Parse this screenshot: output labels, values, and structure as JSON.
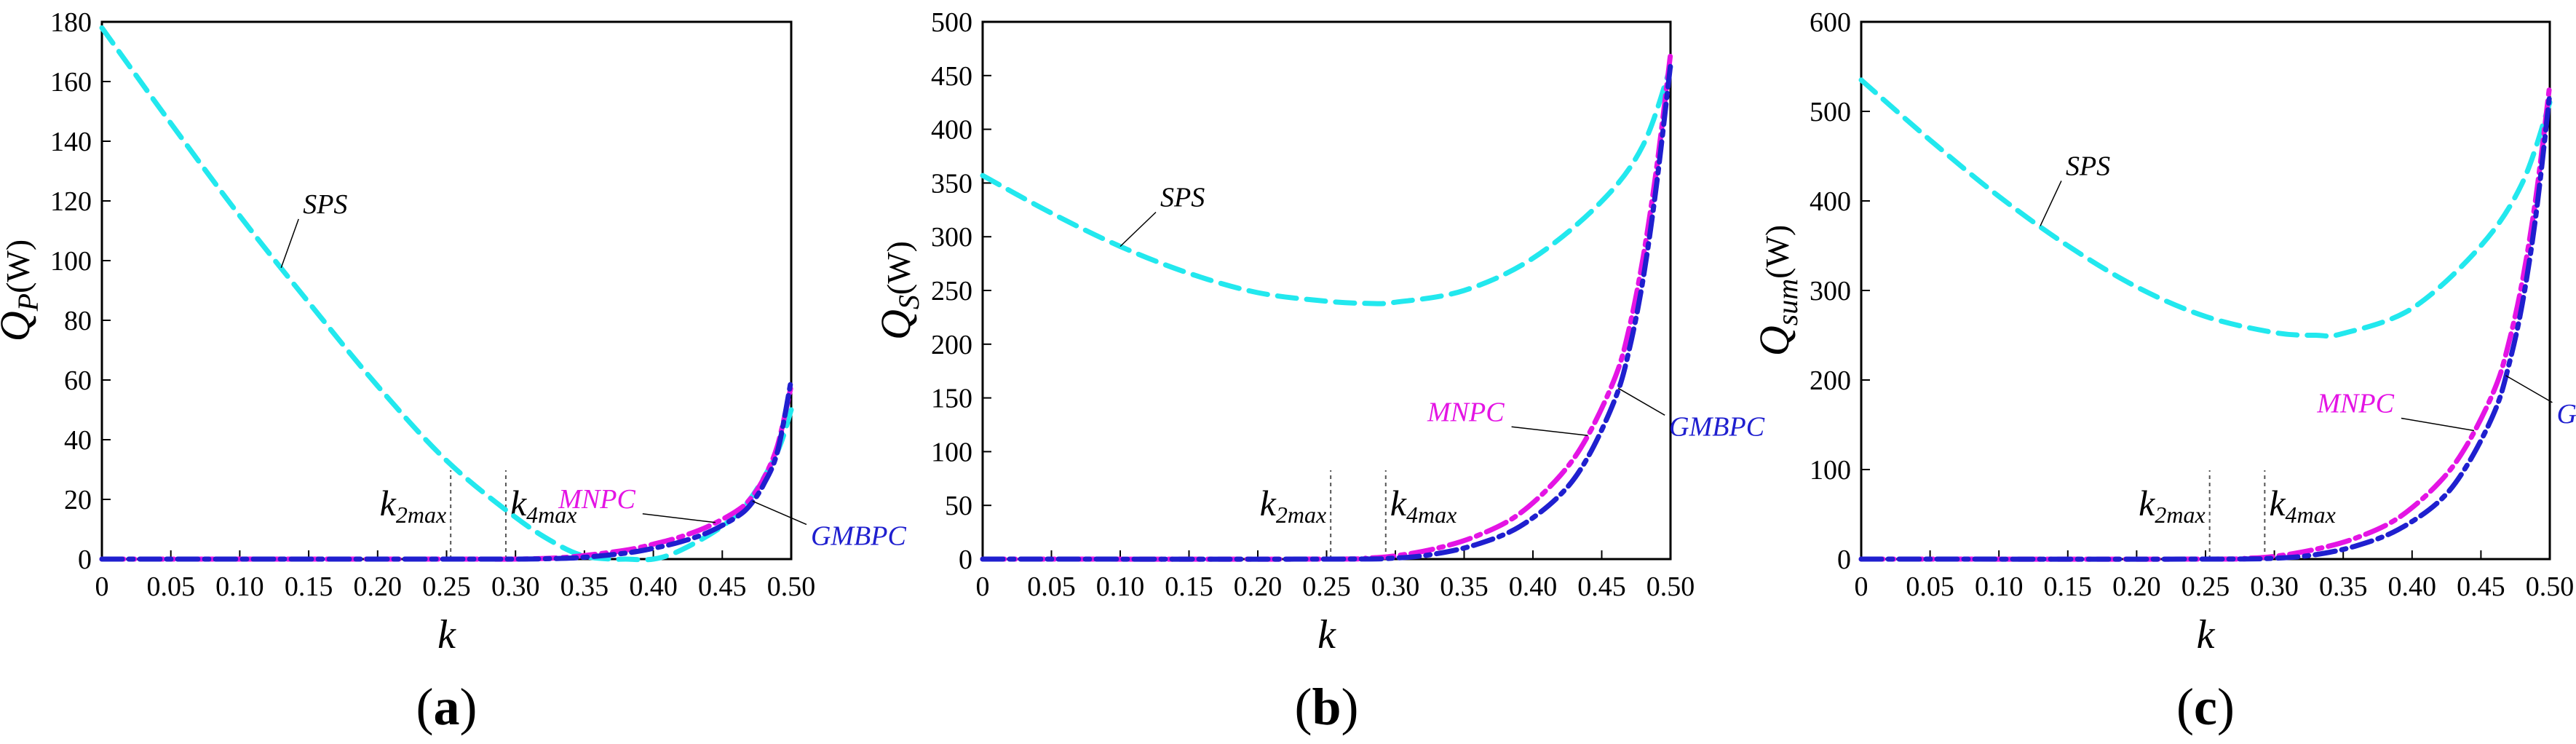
{
  "colors": {
    "SPS": "#22e8ee",
    "MNPC": "#e414e4",
    "GMBPC": "#1f1fcf",
    "axis": "#000000"
  },
  "chart_data": [
    {
      "type": "line",
      "panel_label": "a",
      "xlabel": "k",
      "ylabel": {
        "main": "Q",
        "sub": "P",
        "unit": "(W)"
      },
      "xlim": [
        0,
        0.5
      ],
      "ylim": [
        0,
        180
      ],
      "xticks": [
        "0",
        "0.05",
        "0.10",
        "0.15",
        "0.20",
        "0.25",
        "0.30",
        "0.35",
        "0.40",
        "0.45",
        "0.50"
      ],
      "yticks": [
        "0",
        "20",
        "40",
        "60",
        "80",
        "100",
        "120",
        "140",
        "160",
        "180"
      ],
      "markers": [
        {
          "k": 0.253,
          "label": "k",
          "sub": "2max"
        },
        {
          "k": 0.293,
          "label": "k",
          "sub": "4max"
        }
      ],
      "series": [
        {
          "name": "SPS",
          "x": [
            0,
            0.05,
            0.1,
            0.15,
            0.2,
            0.25,
            0.3,
            0.33,
            0.35,
            0.37,
            0.38,
            0.4,
            0.42,
            0.45,
            0.47,
            0.49,
            0.5
          ],
          "y": [
            178,
            146,
            115,
            86,
            58,
            33,
            14,
            5,
            1,
            0,
            0,
            0,
            3,
            11,
            20,
            36,
            50
          ]
        },
        {
          "name": "MNPC",
          "x": [
            0,
            0.25,
            0.3,
            0.33,
            0.35,
            0.38,
            0.4,
            0.42,
            0.44,
            0.46,
            0.47,
            0.48,
            0.49,
            0.5
          ],
          "y": [
            0,
            0,
            0,
            0.4,
            1.2,
            3,
            5,
            7.5,
            11,
            16,
            20,
            27,
            38,
            58
          ]
        },
        {
          "name": "GMBPC",
          "x": [
            0,
            0.25,
            0.3,
            0.33,
            0.35,
            0.38,
            0.4,
            0.42,
            0.44,
            0.46,
            0.47,
            0.48,
            0.49,
            0.5
          ],
          "y": [
            0,
            0,
            0,
            0.2,
            0.6,
            2,
            3.6,
            5.8,
            9,
            14,
            18,
            25,
            36,
            60
          ]
        }
      ],
      "annotations": [
        {
          "text": "SPS",
          "series": "SPS"
        },
        {
          "text": "MNPC",
          "series": "MNPC"
        },
        {
          "text": "GMBPC",
          "series": "GMBPC"
        }
      ]
    },
    {
      "type": "line",
      "panel_label": "b",
      "xlabel": "k",
      "ylabel": {
        "main": "Q",
        "sub": "S",
        "unit": "(W)"
      },
      "xlim": [
        0,
        0.5
      ],
      "ylim": [
        0,
        500
      ],
      "xticks": [
        "0",
        "0.05",
        "0.10",
        "0.15",
        "0.20",
        "0.25",
        "0.30",
        "0.35",
        "0.40",
        "0.45",
        "0.50"
      ],
      "yticks": [
        "0",
        "50",
        "100",
        "150",
        "200",
        "250",
        "300",
        "350",
        "400",
        "450",
        "500"
      ],
      "markers": [
        {
          "k": 0.253,
          "label": "k",
          "sub": "2max"
        },
        {
          "k": 0.293,
          "label": "k",
          "sub": "4max"
        }
      ],
      "series": [
        {
          "name": "SPS",
          "x": [
            0,
            0.05,
            0.1,
            0.15,
            0.2,
            0.25,
            0.28,
            0.3,
            0.35,
            0.4,
            0.45,
            0.48,
            0.5
          ],
          "y": [
            357,
            322,
            291,
            266,
            248,
            240,
            238,
            239,
            250,
            280,
            333,
            385,
            458
          ]
        },
        {
          "name": "MNPC",
          "x": [
            0,
            0.25,
            0.28,
            0.3,
            0.33,
            0.36,
            0.39,
            0.42,
            0.44,
            0.46,
            0.47,
            0.48,
            0.49,
            0.5
          ],
          "y": [
            0,
            0,
            1,
            3,
            10,
            22,
            42,
            78,
            115,
            170,
            215,
            280,
            365,
            470
          ]
        },
        {
          "name": "GMBPC",
          "x": [
            0,
            0.25,
            0.3,
            0.33,
            0.36,
            0.39,
            0.42,
            0.44,
            0.46,
            0.47,
            0.48,
            0.49,
            0.5
          ],
          "y": [
            0,
            0,
            1,
            5,
            14,
            30,
            60,
            95,
            150,
            195,
            260,
            350,
            460
          ]
        }
      ],
      "annotations": [
        {
          "text": "SPS",
          "series": "SPS"
        },
        {
          "text": "MNPC",
          "series": "MNPC"
        },
        {
          "text": "GMBPC",
          "series": "GMBPC"
        }
      ]
    },
    {
      "type": "line",
      "panel_label": "c",
      "xlabel": "k",
      "ylabel": {
        "main": "Q",
        "sub": "sum",
        "unit": "(W)"
      },
      "xlim": [
        0,
        0.5
      ],
      "ylim": [
        0,
        600
      ],
      "xticks": [
        "0",
        "0.05",
        "0.10",
        "0.15",
        "0.20",
        "0.25",
        "0.30",
        "0.35",
        "0.40",
        "0.45",
        "0.50"
      ],
      "yticks": [
        "0",
        "100",
        "200",
        "300",
        "400",
        "500",
        "600"
      ],
      "markers": [
        {
          "k": 0.253,
          "label": "k",
          "sub": "2max"
        },
        {
          "k": 0.293,
          "label": "k",
          "sub": "4max"
        }
      ],
      "series": [
        {
          "name": "SPS",
          "x": [
            0,
            0.05,
            0.1,
            0.15,
            0.2,
            0.25,
            0.3,
            0.33,
            0.35,
            0.4,
            0.45,
            0.48,
            0.5
          ],
          "y": [
            535,
            468,
            405,
            350,
            304,
            271,
            253,
            250,
            252,
            280,
            350,
            420,
            510
          ]
        },
        {
          "name": "MNPC",
          "x": [
            0,
            0.25,
            0.28,
            0.3,
            0.33,
            0.36,
            0.39,
            0.42,
            0.44,
            0.46,
            0.47,
            0.48,
            0.49,
            0.5
          ],
          "y": [
            0,
            0,
            1,
            3,
            11,
            24,
            46,
            86,
            128,
            190,
            240,
            310,
            405,
            530
          ]
        },
        {
          "name": "GMBPC",
          "x": [
            0,
            0.25,
            0.3,
            0.33,
            0.36,
            0.39,
            0.42,
            0.44,
            0.46,
            0.47,
            0.48,
            0.49,
            0.5
          ],
          "y": [
            0,
            0,
            1,
            5,
            15,
            33,
            65,
            105,
            165,
            215,
            285,
            385,
            520
          ]
        }
      ],
      "annotations": [
        {
          "text": "SPS",
          "series": "SPS"
        },
        {
          "text": "MNPC",
          "series": "MNPC"
        },
        {
          "text": "GMBPC",
          "series": "GMBPC"
        }
      ]
    }
  ]
}
